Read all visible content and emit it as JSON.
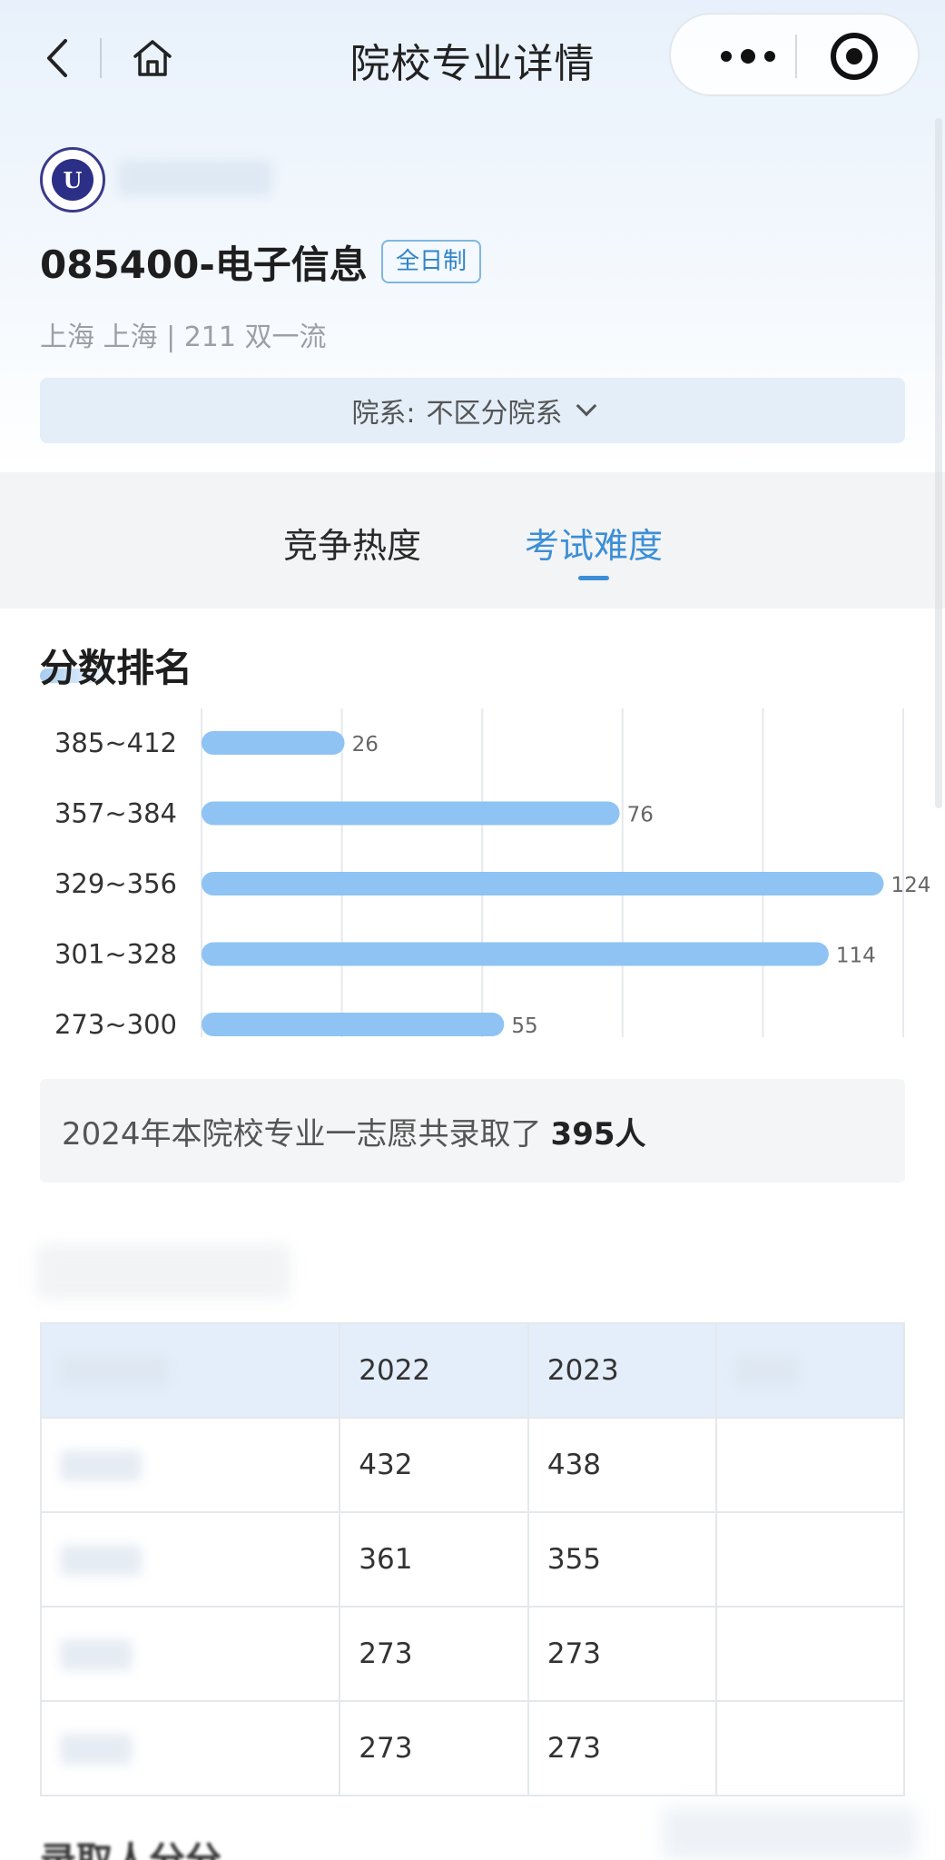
{
  "navbar": {
    "title": "院校专业详情"
  },
  "header": {
    "logo_text": "U",
    "major_title": "085400-电子信息",
    "study_mode_tag": "全日制",
    "location": "上海 上海 | 211 双一流",
    "department_label": "院系:",
    "department_value": "不区分院系"
  },
  "tabs": [
    {
      "label": "竞争热度",
      "active": false
    },
    {
      "label": "考试难度",
      "active": true
    }
  ],
  "section": {
    "title": "分数排名"
  },
  "chart_data": {
    "type": "bar",
    "orientation": "horizontal",
    "categories": [
      "385~412",
      "357~384",
      "329~356",
      "301~328",
      "273~300"
    ],
    "values": [
      26,
      76,
      124,
      114,
      55
    ],
    "xlim": [
      0,
      125
    ],
    "grid": true,
    "bar_color": "#8ec3f3"
  },
  "summary": {
    "text": "2024年本院校专业一志愿共录取了",
    "count": "395人"
  },
  "table": {
    "headers": [
      "",
      "2022",
      "2023",
      ""
    ],
    "rows": [
      [
        "432",
        "438"
      ],
      [
        "361",
        "355"
      ],
      [
        "273",
        "273"
      ],
      [
        "273",
        "273"
      ]
    ]
  },
  "bottom": {
    "title": "录取人分分"
  },
  "colors": {
    "accent": "#3c8fd6",
    "bar": "#8ec3f3"
  }
}
